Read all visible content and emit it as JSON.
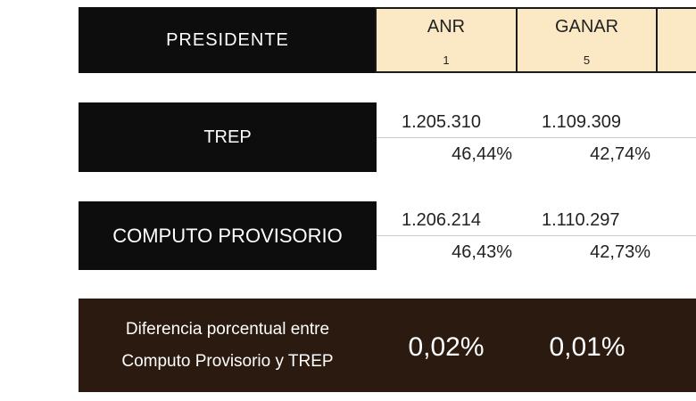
{
  "header": {
    "label": "PRESIDENTE",
    "parties": [
      {
        "name": "ANR",
        "number": "1"
      },
      {
        "name": "GANAR",
        "number": "5"
      }
    ]
  },
  "rows": [
    {
      "label": "TREP",
      "values": [
        {
          "votes": "1.205.310",
          "percent": "46,44%"
        },
        {
          "votes": "1.109.309",
          "percent": "42,74%"
        }
      ]
    },
    {
      "label": "COMPUTO PROVISORIO",
      "values": [
        {
          "votes": "1.206.214",
          "percent": "46,43%"
        },
        {
          "votes": "1.110.297",
          "percent": "42,73%"
        }
      ]
    }
  ],
  "difference": {
    "label": [
      "Diferencia porcentual entre",
      "Computo Provisorio y TREP"
    ],
    "values": [
      "0,02%",
      "0,01%"
    ]
  }
}
